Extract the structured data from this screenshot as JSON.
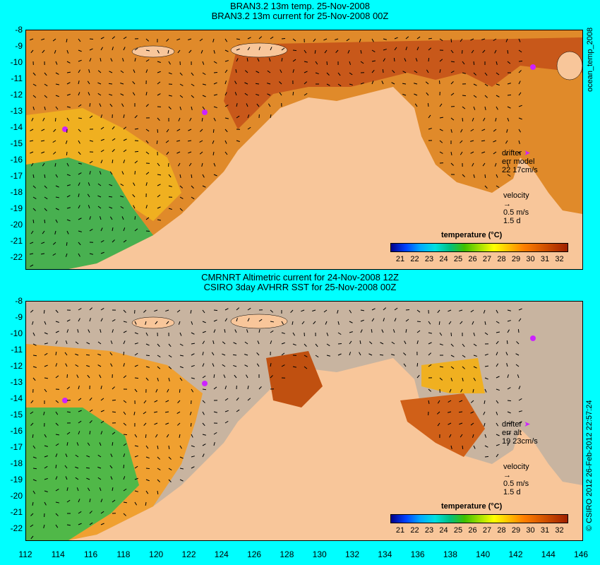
{
  "top": {
    "title_line1": "BRAN3.2 13m temp. 25-Nov-2008",
    "title_line2": "BRAN3.2 13m current for 25-Nov-2008 00Z",
    "legend": {
      "drifter": "drifter",
      "err": "err model",
      "err_value": "22 17cm/s",
      "velocity": "velocity",
      "velocity_scale": "0.5 m/s",
      "velocity_days": "1.5 d"
    },
    "side_label": "ocean_temp_2008"
  },
  "bottom": {
    "title_line1": "CMRNRT Altimetric current for 24-Nov-2008 12Z",
    "title_line2": "CSIRO 3day AVHRR SST for 25-Nov-2008 00Z",
    "legend": {
      "drifter": "drifter",
      "err": "err alt",
      "err_value": "19 23cm/s",
      "velocity": "velocity",
      "velocity_scale": "0.5 m/s",
      "velocity_days": "1.5 d"
    },
    "side_label": "© CSIRO 2012  26-Feb-2012 22:57:24"
  },
  "colorbar": {
    "title": "temperature (°C)",
    "ticks": [
      "21",
      "22",
      "23",
      "24",
      "25",
      "26",
      "27",
      "28",
      "29",
      "30",
      "31",
      "32"
    ],
    "colors": [
      "#00008b",
      "#0040ff",
      "#00aaff",
      "#00e0e0",
      "#00c080",
      "#40c000",
      "#a0e000",
      "#ffff00",
      "#ffc000",
      "#ff8000",
      "#e06000",
      "#c04000",
      "#a02000"
    ]
  },
  "axes": {
    "lat_ticks": [
      "-8",
      "-9",
      "-10",
      "-11",
      "-12",
      "-13",
      "-14",
      "-15",
      "-16",
      "-17",
      "-18",
      "-19",
      "-20",
      "-21",
      "-22"
    ],
    "lon_ticks": [
      "112",
      "114",
      "116",
      "118",
      "120",
      "122",
      "124",
      "126",
      "128",
      "130",
      "132",
      "134",
      "136",
      "138",
      "140",
      "142",
      "144",
      "146"
    ]
  },
  "colors": {
    "land": "#f8c69a",
    "background": "#00ffff",
    "ocean_warm": "#e08020",
    "ocean_hot": "#c05010",
    "ocean_cool": "#40b060",
    "no_data": "#c8b4a0"
  }
}
